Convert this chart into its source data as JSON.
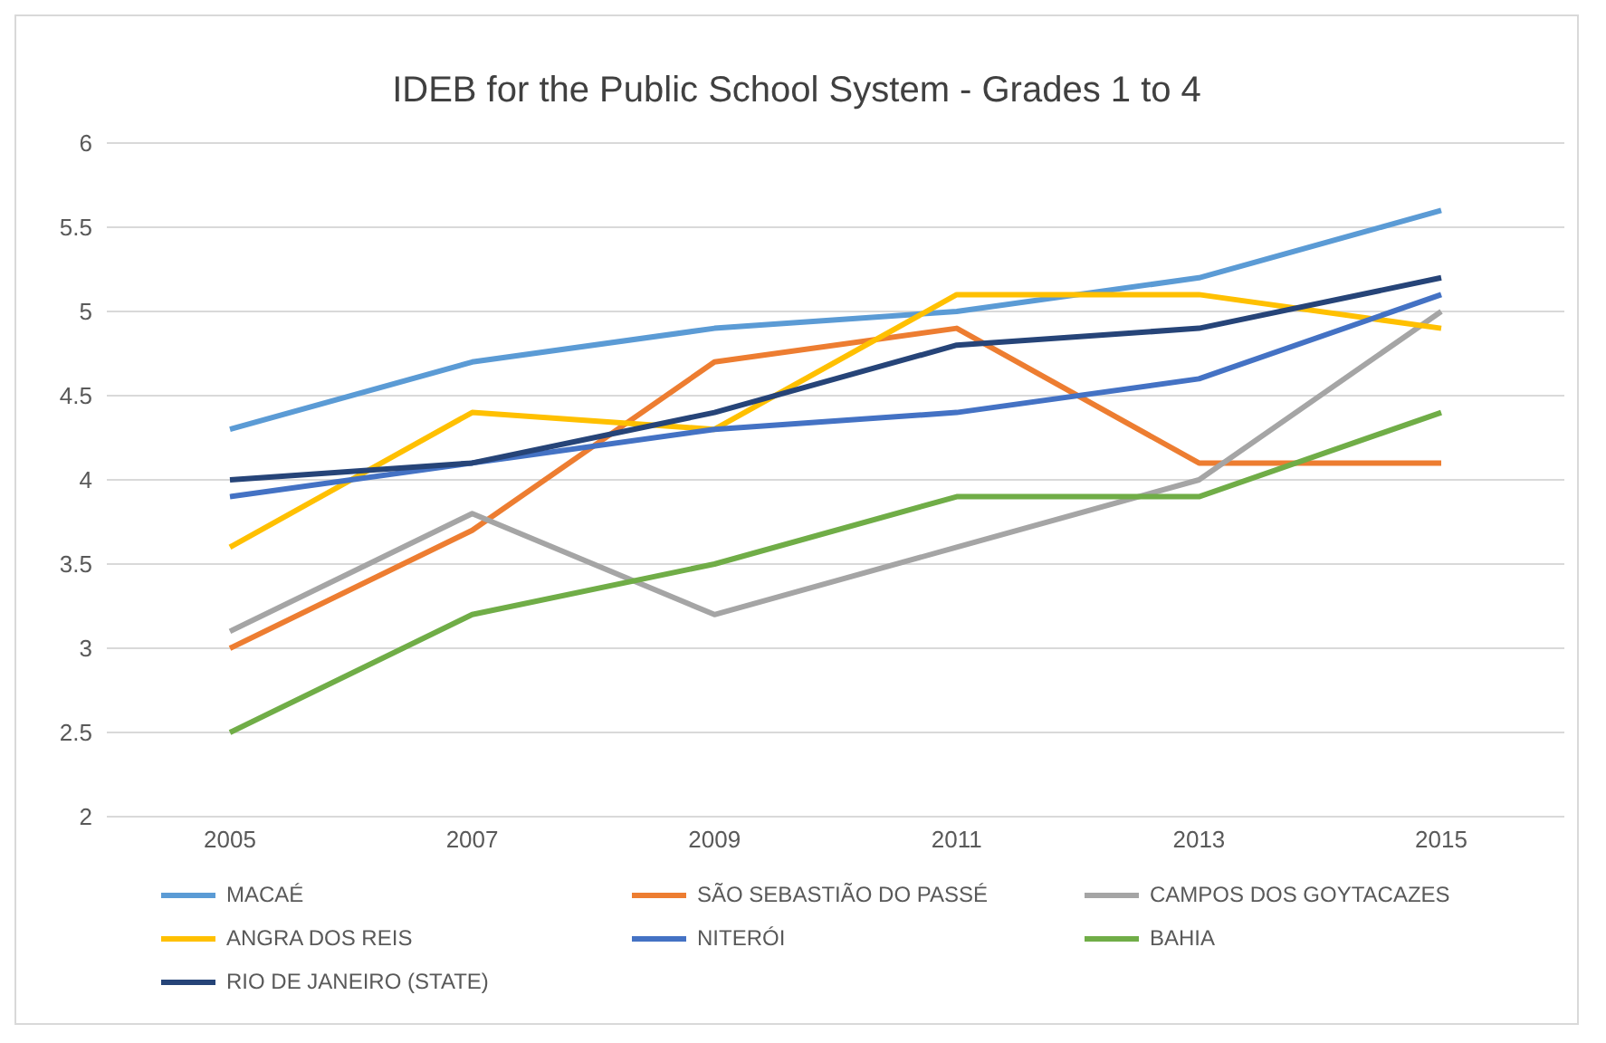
{
  "chart_data": {
    "type": "line",
    "title": "IDEB for the Public School System - Grades 1 to 4",
    "categories": [
      "2005",
      "2007",
      "2009",
      "2011",
      "2013",
      "2015"
    ],
    "series": [
      {
        "name": "MACAÉ",
        "color": "#5b9bd5",
        "values": [
          4.3,
          4.7,
          4.9,
          5.0,
          5.2,
          5.6
        ]
      },
      {
        "name": "SÃO SEBASTIÃO DO PASSÉ",
        "color": "#ed7d31",
        "values": [
          3.0,
          3.7,
          4.7,
          4.9,
          4.1,
          4.1
        ]
      },
      {
        "name": "CAMPOS DOS GOYTACAZES",
        "color": "#a5a5a5",
        "values": [
          3.1,
          3.8,
          3.2,
          3.6,
          4.0,
          5.0
        ]
      },
      {
        "name": "ANGRA DOS REIS",
        "color": "#ffc000",
        "values": [
          3.6,
          4.4,
          4.3,
          5.1,
          5.1,
          4.9
        ]
      },
      {
        "name": "NITERÓI",
        "color": "#4472c4",
        "values": [
          3.9,
          4.1,
          4.3,
          4.4,
          4.6,
          5.1
        ]
      },
      {
        "name": "BAHIA",
        "color": "#70ad47",
        "values": [
          2.5,
          3.2,
          3.5,
          3.9,
          3.9,
          4.4
        ]
      },
      {
        "name": "RIO DE JANEIRO (STATE)",
        "color": "#264478",
        "values": [
          4.0,
          4.1,
          4.4,
          4.8,
          4.9,
          5.2
        ]
      }
    ],
    "ylim": [
      2,
      6
    ],
    "yticks": [
      2,
      2.5,
      3,
      3.5,
      4,
      4.5,
      5,
      5.5,
      6
    ],
    "grid": "y",
    "legend": "bottom",
    "marker": "none",
    "line_style": "solid"
  }
}
